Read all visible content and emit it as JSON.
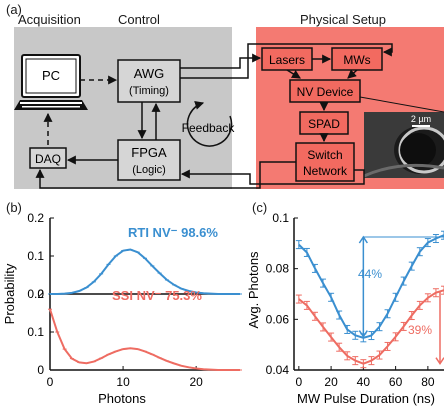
{
  "panel_a": {
    "label": "(a)",
    "section_acquisition": "Acquisition",
    "section_control": "Control",
    "section_physical": "Physical Setup",
    "pc": "PC",
    "awg": "AWG",
    "awg_sub": "(Timing)",
    "fpga": "FPGA",
    "fpga_sub": "(Logic)",
    "daq": "DAQ",
    "feedback": "Feedback",
    "lasers": "Lasers",
    "mws": "MWs",
    "nv_device": "NV Device",
    "spad": "SPAD",
    "switch_line1": "Switch",
    "switch_line2": "Network",
    "scale_bar": "2 µm",
    "colors": {
      "control_bg": "#c8c8c8",
      "physical_bg": "#f47a72",
      "box_fill_red": "#f26a60"
    }
  },
  "panel_b": {
    "label": "(b)",
    "ylabel": "Probability",
    "xlabel": "Photons",
    "legend_rti": "RTI NV⁻ 98.6%",
    "legend_ssi": "SSI NV⁻ 75.3%"
  },
  "panel_c": {
    "label": "(c)",
    "ylabel": "Avg. Photons",
    "xlabel": "MW Pulse Duration (ns)",
    "annotation_blue": "44%",
    "annotation_red": "39%"
  },
  "chart_data": [
    {
      "type": "line",
      "panel": "b-top",
      "xlim": [
        0,
        26
      ],
      "ylim": [
        0,
        0.2
      ],
      "yticks": [
        "0",
        "0.1",
        "0.2"
      ],
      "series": [
        {
          "name": "RTI NV⁻ 98.6%",
          "color": "#3a8fd0",
          "x": [
            0,
            1,
            2,
            3,
            4,
            5,
            6,
            7,
            8,
            9,
            10,
            11,
            12,
            13,
            14,
            15,
            16,
            17,
            18,
            19,
            20,
            21,
            22,
            23,
            24,
            25,
            26
          ],
          "y": [
            0,
            0,
            0.001,
            0.003,
            0.008,
            0.017,
            0.032,
            0.053,
            0.078,
            0.1,
            0.114,
            0.117,
            0.11,
            0.094,
            0.074,
            0.055,
            0.037,
            0.024,
            0.014,
            0.008,
            0.004,
            0.002,
            0.001,
            0,
            0,
            0,
            0
          ]
        }
      ]
    },
    {
      "type": "line",
      "panel": "b-bottom",
      "xlim": [
        0,
        26
      ],
      "ylim": [
        0,
        0.2
      ],
      "xticks": [
        "0",
        "10",
        "20"
      ],
      "yticks": [
        "0",
        "0.1",
        "0.2"
      ],
      "series": [
        {
          "name": "SSI NV⁻ 75.3%",
          "color": "#ee6c62",
          "x": [
            0,
            1,
            2,
            3,
            4,
            5,
            6,
            7,
            8,
            9,
            10,
            11,
            12,
            13,
            14,
            15,
            16,
            17,
            18,
            19,
            20,
            21,
            22,
            23,
            24,
            25,
            26
          ],
          "y": [
            0.16,
            0.1,
            0.055,
            0.03,
            0.02,
            0.018,
            0.022,
            0.031,
            0.041,
            0.049,
            0.055,
            0.057,
            0.055,
            0.049,
            0.041,
            0.032,
            0.024,
            0.017,
            0.011,
            0.007,
            0.004,
            0.002,
            0.001,
            0,
            0,
            0,
            0
          ]
        }
      ]
    },
    {
      "type": "line",
      "panel": "c",
      "xlim": [
        -3,
        90
      ],
      "ylim": [
        0.04,
        0.1
      ],
      "xticks": [
        "0",
        "20",
        "40",
        "60",
        "80"
      ],
      "yticks": [
        "0.04",
        "0.06",
        "0.08",
        "0.1"
      ],
      "series": [
        {
          "color": "#3a8fd0",
          "x": [
            0,
            5,
            10,
            15,
            20,
            25,
            30,
            35,
            40,
            45,
            50,
            55,
            60,
            65,
            70,
            75,
            80,
            85,
            90
          ],
          "y": [
            0.0895,
            0.0864,
            0.0801,
            0.0743,
            0.0687,
            0.0617,
            0.056,
            0.0537,
            0.0527,
            0.0536,
            0.0571,
            0.0622,
            0.0687,
            0.0751,
            0.081,
            0.0867,
            0.0903,
            0.0919,
            0.0932
          ]
        },
        {
          "color": "#ee6c62",
          "x": [
            0,
            5,
            10,
            15,
            20,
            25,
            30,
            35,
            40,
            45,
            50,
            55,
            60,
            65,
            70,
            75,
            80,
            85,
            90
          ],
          "y": [
            0.068,
            0.0655,
            0.0612,
            0.057,
            0.053,
            0.049,
            0.0456,
            0.0437,
            0.0425,
            0.0437,
            0.0459,
            0.0493,
            0.0531,
            0.0572,
            0.0615,
            0.0655,
            0.0685,
            0.0705,
            0.0715
          ]
        }
      ]
    }
  ]
}
